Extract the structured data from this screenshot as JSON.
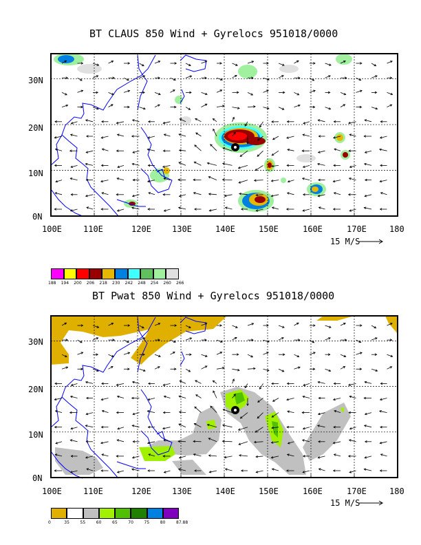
{
  "panels": [
    {
      "id": "claus",
      "title": "BT CLAUS 850 Wind + Gyrelocs 951018/0000",
      "lon_labels": [
        "100E",
        "110E",
        "120E",
        "130E",
        "140E",
        "150E",
        "160E",
        "170E",
        "180"
      ],
      "lat_labels": [
        "0N",
        "10N",
        "20N",
        "30N"
      ],
      "wind_scale_label": "15 M/S",
      "colorbar": {
        "colors": [
          "#ff00ff",
          "#ffff00",
          "#ff0000",
          "#990000",
          "#e6b800",
          "#0080e0",
          "#40ffff",
          "#60c060",
          "#a0f0a0",
          "#e0e0e0"
        ],
        "labels": [
          "188",
          "194",
          "200",
          "206",
          "218",
          "230",
          "242",
          "248",
          "254",
          "260",
          "266"
        ]
      }
    },
    {
      "id": "pwat",
      "title": "BT Pwat 850 Wind + Gyrelocs 951018/0000",
      "lon_labels": [
        "100E",
        "110E",
        "120E",
        "130E",
        "140E",
        "150E",
        "160E",
        "170E",
        "180"
      ],
      "lat_labels": [
        "0N",
        "10N",
        "20N",
        "30N"
      ],
      "wind_scale_label": "15 M/S",
      "colorbar": {
        "colors": [
          "#e0b000",
          "#ffffff",
          "#c0c0c0",
          "#a0f000",
          "#50c000",
          "#208000",
          "#0080e0",
          "#8000c0"
        ],
        "labels": [
          "0",
          "35",
          "55",
          "60",
          "65",
          "70",
          "75",
          "80",
          "87.88"
        ]
      }
    }
  ],
  "colors": {
    "coastline": "#0000ff",
    "frame": "#000000",
    "gyre_marker": "#000000"
  }
}
